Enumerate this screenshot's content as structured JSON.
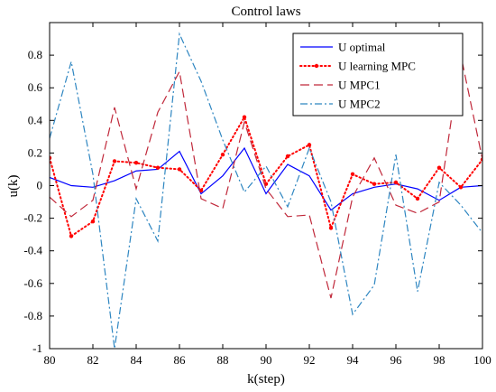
{
  "chart_data": {
    "type": "line",
    "title": "Control laws",
    "xlabel": "k(step)",
    "ylabel": "u(k)",
    "xlim": [
      80,
      100
    ],
    "ylim": [
      -1,
      1
    ],
    "xticks": [
      80,
      82,
      84,
      86,
      88,
      90,
      92,
      94,
      96,
      98,
      100
    ],
    "yticks": [
      -1,
      -0.8,
      -0.6,
      -0.4,
      -0.2,
      0,
      0.2,
      0.4,
      0.6,
      0.8
    ],
    "ytick_labels": [
      "-1",
      "-0.8",
      "-0.6",
      "-0.4",
      "-0.2",
      "0",
      "0.2",
      "0.4",
      "0.6",
      "0.8"
    ],
    "grid": false,
    "legend_position": "top-right",
    "x": [
      80,
      81,
      82,
      83,
      84,
      85,
      86,
      87,
      88,
      89,
      90,
      91,
      92,
      93,
      94,
      95,
      96,
      97,
      98,
      99,
      100
    ],
    "series": [
      {
        "name": "U optimal",
        "color": "#0000ff",
        "style": "solid",
        "marker": "none",
        "values": [
          0.05,
          0.0,
          -0.01,
          0.03,
          0.09,
          0.1,
          0.21,
          -0.05,
          0.06,
          0.23,
          -0.05,
          0.13,
          0.06,
          -0.15,
          -0.05,
          -0.01,
          0.01,
          -0.02,
          -0.09,
          -0.01,
          0.0
        ]
      },
      {
        "name": "U learning MPC",
        "color": "#ff0000",
        "style": "dotted",
        "marker": "dot",
        "values": [
          0.17,
          -0.31,
          -0.22,
          0.15,
          0.14,
          0.11,
          0.1,
          -0.03,
          0.19,
          0.42,
          0.01,
          0.18,
          0.25,
          -0.26,
          0.07,
          0.01,
          0.02,
          -0.08,
          0.11,
          -0.01,
          0.16
        ]
      },
      {
        "name": "U MPC1",
        "color": "#c0283a",
        "style": "dashed",
        "marker": "none",
        "values": [
          -0.07,
          -0.19,
          -0.09,
          0.48,
          -0.02,
          0.45,
          0.7,
          -0.08,
          -0.14,
          0.39,
          -0.02,
          -0.19,
          -0.18,
          -0.69,
          -0.07,
          0.17,
          -0.12,
          -0.17,
          -0.1,
          0.8,
          0.16
        ]
      },
      {
        "name": "U MPC2",
        "color": "#2e86c1",
        "style": "dashdot",
        "marker": "none",
        "values": [
          0.29,
          0.76,
          0.07,
          -1.0,
          -0.08,
          -0.34,
          0.93,
          0.64,
          0.28,
          -0.04,
          0.12,
          -0.13,
          0.23,
          -0.1,
          -0.79,
          -0.61,
          0.19,
          -0.65,
          0.02,
          -0.12,
          -0.29
        ]
      }
    ]
  }
}
